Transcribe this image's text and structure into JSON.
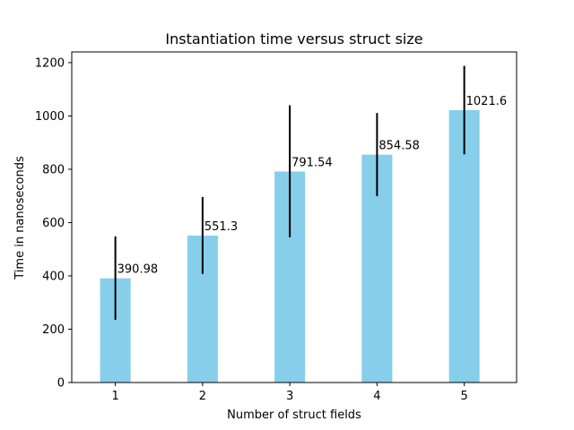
{
  "chart_data": {
    "type": "bar",
    "title": "Instantiation time versus struct size",
    "xlabel": "Number of struct fields",
    "ylabel": "Time in nanoseconds",
    "categories": [
      "1",
      "2",
      "3",
      "4",
      "5"
    ],
    "values": [
      390.98,
      551.3,
      791.54,
      854.58,
      1021.6
    ],
    "data_labels": [
      "390.98",
      "551.3",
      "791.54",
      "854.58",
      "1021.6"
    ],
    "error_bars": [
      {
        "low": 235,
        "high": 548
      },
      {
        "low": 407,
        "high": 696
      },
      {
        "low": 545,
        "high": 1040
      },
      {
        "low": 699,
        "high": 1011
      },
      {
        "low": 856,
        "high": 1188
      }
    ],
    "ylim": [
      0,
      1240
    ],
    "yticks": [
      0,
      200,
      400,
      600,
      800,
      1000,
      1200
    ],
    "xlim": [
      0.5,
      5.6
    ],
    "bar_color": "#87ceeb",
    "error_color": "#000000",
    "grid": false
  }
}
